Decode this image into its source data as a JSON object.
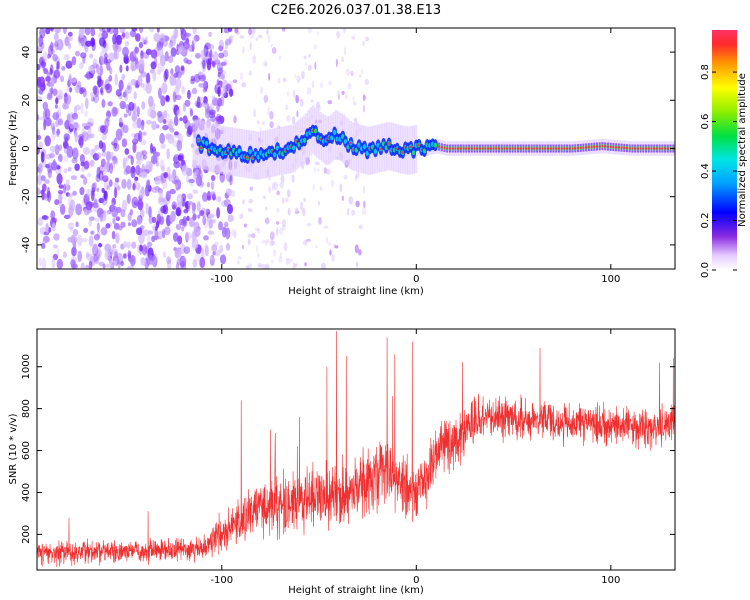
{
  "title": "C2E6.2026.037.01.38.E13",
  "colors": {
    "snr_line": "#f03030",
    "spectrogram_low": "#c9a6ff",
    "spectrogram_mid": "#6a1cff",
    "track": "#0a2cff",
    "track_core": "#e83a3a"
  },
  "chart_data": [
    {
      "type": "heatmap",
      "name": "spectrogram",
      "xlabel": "Height of straight line (km)",
      "ylabel": "Frequency (Hz)",
      "xlim": [
        -195,
        133
      ],
      "ylim": [
        -50,
        50
      ],
      "x_ticks": [
        -100,
        0,
        100
      ],
      "x_tick_labels": [
        "-100",
        "0",
        "100"
      ],
      "y_ticks": [
        -40,
        -20,
        0,
        20,
        40
      ],
      "y_tick_labels": [
        "-40",
        "-20",
        "0",
        "20",
        "40"
      ],
      "track": {
        "x": [
          -112,
          -105,
          -98,
          -90,
          -82,
          -76,
          -70,
          -64,
          -58,
          -54,
          -50,
          -46,
          -42,
          -38,
          -34,
          -30,
          -25,
          -20,
          -15,
          -10,
          -5,
          0,
          5,
          10,
          15,
          25,
          40,
          60,
          80,
          95,
          110,
          133
        ],
        "y": [
          2,
          0,
          -1,
          -2,
          -3,
          -2,
          -1,
          0,
          4,
          8,
          5,
          3,
          6,
          4,
          1,
          0,
          -1,
          0,
          1,
          0,
          -1,
          0,
          0,
          1,
          0,
          0,
          0,
          0,
          0,
          1,
          0,
          0
        ]
      },
      "colorbar": {
        "label": "Normalized spectral amplitude",
        "range": [
          0.0,
          0.97
        ],
        "ticks": [
          0.0,
          0.2,
          0.4,
          0.6,
          0.8
        ],
        "tick_labels": [
          "0.0",
          "0.2",
          "0.4",
          "0.6",
          "0.8"
        ]
      }
    },
    {
      "type": "line",
      "name": "snr",
      "xlabel": "Height of straight line (km)",
      "ylabel": "SNR (10 * v/v)",
      "xlim": [
        -195,
        133
      ],
      "ylim": [
        30,
        1180
      ],
      "x_ticks": [
        -100,
        0,
        100
      ],
      "x_tick_labels": [
        "-100",
        "0",
        "100"
      ],
      "y_ticks": [
        200,
        400,
        600,
        800,
        1000
      ],
      "y_tick_labels": [
        "200",
        "400",
        "600",
        "800",
        "1000"
      ],
      "envelope": {
        "x": [
          -195,
          -110,
          -105,
          -95,
          -80,
          -60,
          -40,
          -30,
          -20,
          -15,
          -10,
          -5,
          0,
          10,
          20,
          25,
          30,
          40,
          60,
          80,
          100,
          110,
          120,
          133
        ],
        "mean": [
          110,
          130,
          170,
          240,
          320,
          350,
          380,
          420,
          480,
          520,
          450,
          420,
          400,
          560,
          650,
          700,
          740,
          760,
          750,
          730,
          720,
          710,
          700,
          720
        ],
        "spread": [
          60,
          60,
          80,
          110,
          130,
          160,
          170,
          170,
          180,
          170,
          160,
          150,
          140,
          150,
          140,
          130,
          120,
          110,
          100,
          100,
          100,
          100,
          100,
          110
        ]
      },
      "spikes": [
        {
          "x": -90,
          "y": 840
        },
        {
          "x": -75,
          "y": 700
        },
        {
          "x": -60,
          "y": 760
        },
        {
          "x": -46,
          "y": 1000
        },
        {
          "x": -41,
          "y": 1170
        },
        {
          "x": -36,
          "y": 1050
        },
        {
          "x": -15,
          "y": 1140
        },
        {
          "x": -11,
          "y": 1060
        },
        {
          "x": -2,
          "y": 1120
        },
        {
          "x": 125,
          "y": 1020
        }
      ]
    }
  ]
}
